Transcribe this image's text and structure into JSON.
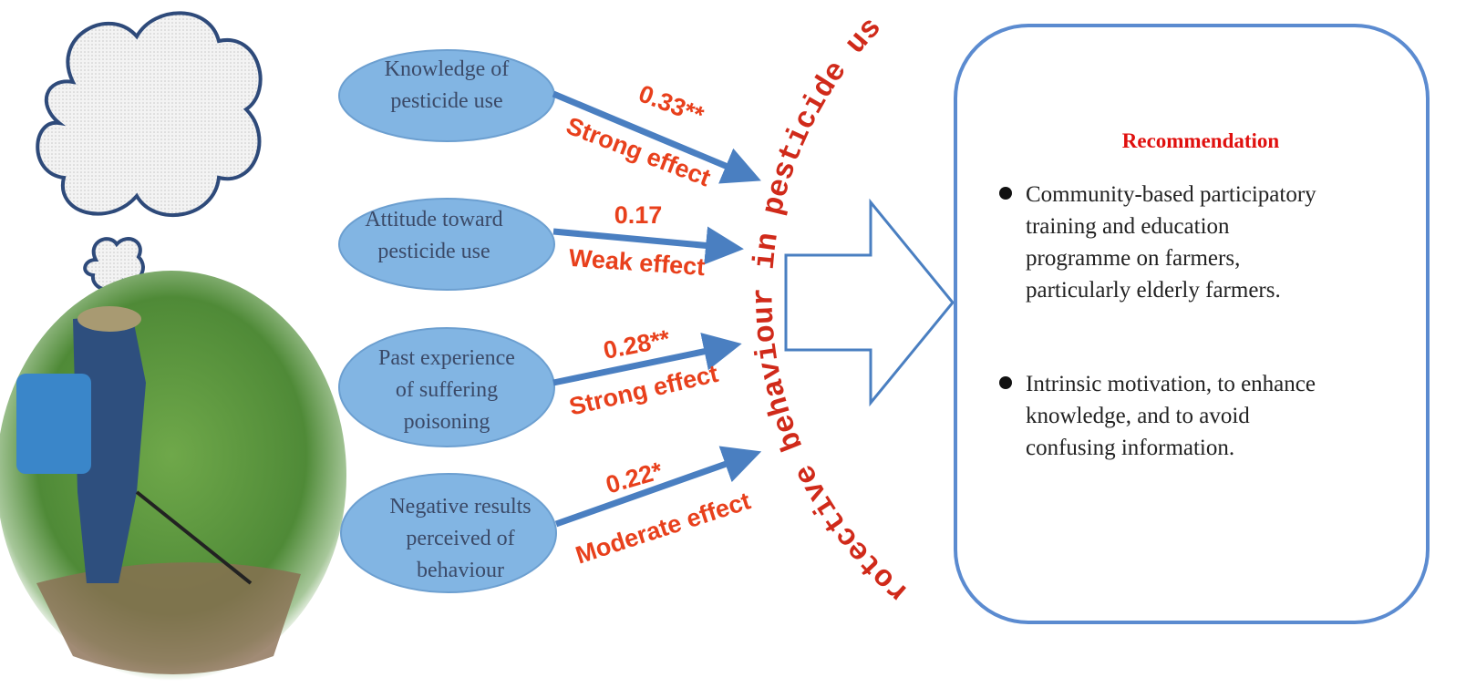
{
  "factors": [
    {
      "label": [
        "Knowledge of",
        "pesticide use"
      ],
      "coefficient": "0.33**",
      "effect": "Strong effect"
    },
    {
      "label": [
        "Attitude toward",
        "pesticide use"
      ],
      "coefficient": "0.17",
      "effect": "Weak effect"
    },
    {
      "label": [
        "Past experience",
        "of suffering",
        "poisoning"
      ],
      "coefficient": "0.28**",
      "effect": "Strong effect"
    },
    {
      "label": [
        "Negative results",
        "perceived of",
        "behaviour"
      ],
      "coefficient": "0.22*",
      "effect": "Moderate effect"
    }
  ],
  "outcome": "Protective behaviour in pesticide use",
  "recommendation": {
    "title": "Recommendation",
    "items": [
      [
        "Community-based participatory",
        "training and education",
        "programme on farmers,",
        "particularly elderly farmers."
      ],
      [
        "Intrinsic motivation, to enhance",
        "knowledge,  and to avoid",
        "confusing information."
      ]
    ]
  }
}
